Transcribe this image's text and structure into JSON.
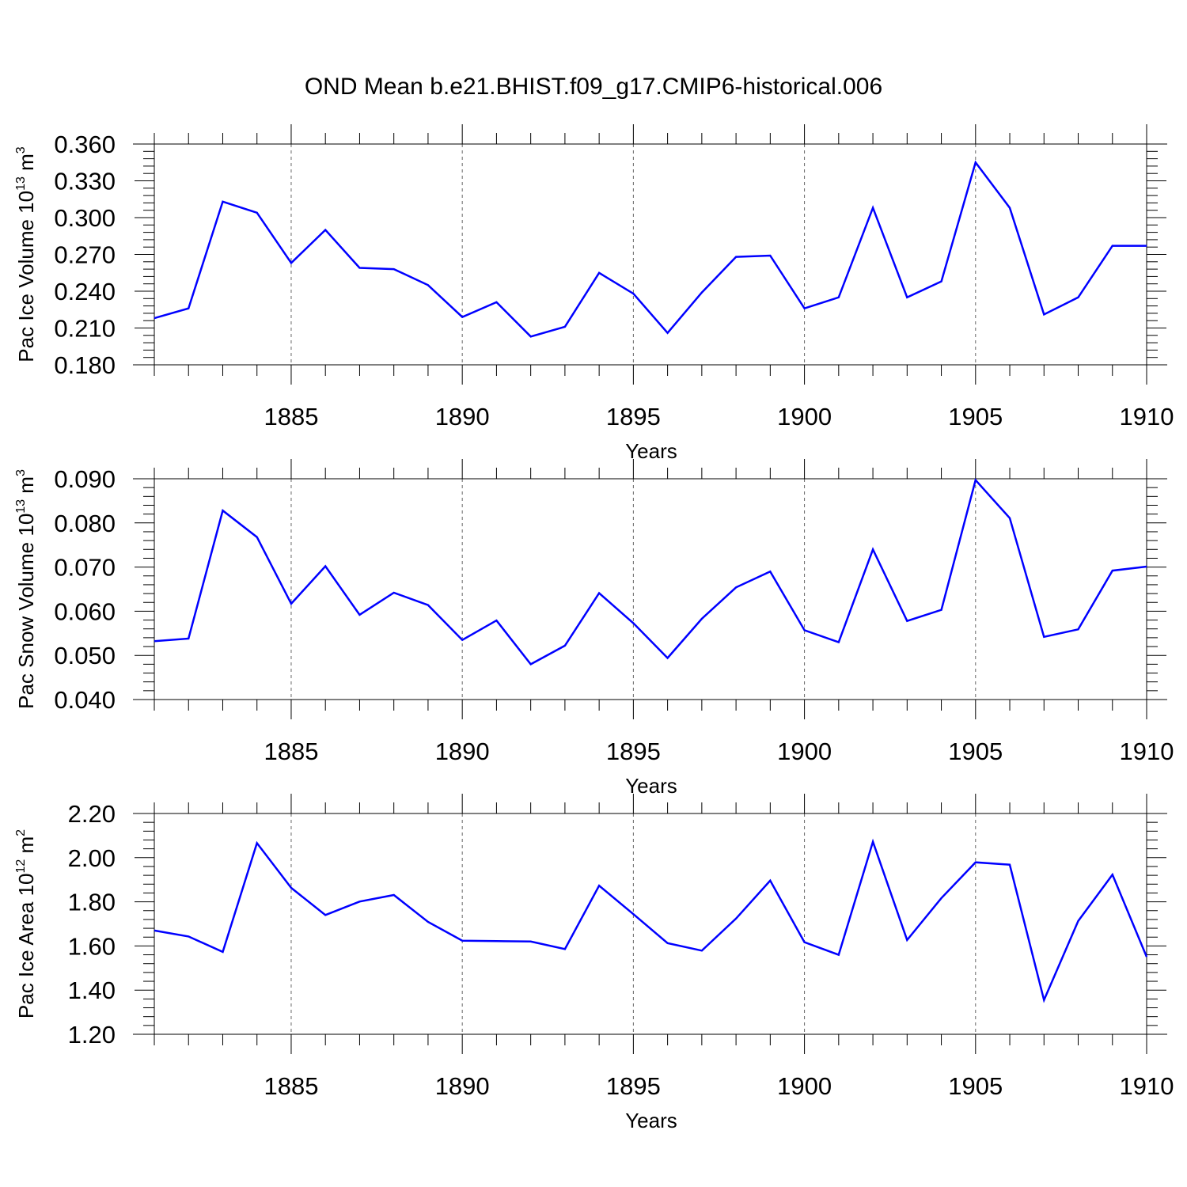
{
  "chart_data": [
    {
      "type": "line",
      "title": "OND Mean b.e21.BHIST.f09_g17.CMIP6-historical.006",
      "xlabel": "Years",
      "ylabel": "Pac Ice Volume 10",
      "ylabel_exp": "13",
      "ylabel_unit": " m",
      "ylabel_unit_exp": "3",
      "xlim": [
        1881,
        1910
      ],
      "ylim": [
        0.18,
        0.36
      ],
      "x_ticks": [
        "1885",
        "1890",
        "1895",
        "1900",
        "1905",
        "1910"
      ],
      "y_ticks": [
        "0.180",
        "0.210",
        "0.240",
        "0.270",
        "0.300",
        "0.330",
        "0.360"
      ],
      "series": [
        {
          "name": "Pac Ice Volume",
          "color": "#0000ff",
          "x": [
            1881,
            1882,
            1883,
            1884,
            1885,
            1886,
            1887,
            1888,
            1889,
            1890,
            1891,
            1892,
            1893,
            1894,
            1895,
            1896,
            1897,
            1898,
            1899,
            1900,
            1901,
            1902,
            1903,
            1904,
            1905,
            1906,
            1907,
            1908,
            1909,
            1910
          ],
          "values": [
            0.218,
            0.226,
            0.313,
            0.304,
            0.263,
            0.29,
            0.259,
            0.258,
            0.245,
            0.219,
            0.231,
            0.203,
            0.211,
            0.255,
            0.238,
            0.206,
            0.239,
            0.268,
            0.269,
            0.226,
            0.235,
            0.308,
            0.235,
            0.248,
            0.345,
            0.308,
            0.221,
            0.235,
            0.277,
            0.277
          ]
        }
      ]
    },
    {
      "type": "line",
      "xlabel": "Years",
      "ylabel": "Pac Snow Volume 10",
      "ylabel_exp": "13",
      "ylabel_unit": " m",
      "ylabel_unit_exp": "3",
      "xlim": [
        1881,
        1910
      ],
      "ylim": [
        0.04,
        0.09
      ],
      "x_ticks": [
        "1885",
        "1890",
        "1895",
        "1900",
        "1905",
        "1910"
      ],
      "y_ticks": [
        "0.040",
        "0.050",
        "0.060",
        "0.070",
        "0.080",
        "0.090"
      ],
      "series": [
        {
          "name": "Pac Snow Volume",
          "color": "#0000ff",
          "x": [
            1881,
            1882,
            1883,
            1884,
            1885,
            1886,
            1887,
            1888,
            1889,
            1890,
            1891,
            1892,
            1893,
            1894,
            1895,
            1896,
            1897,
            1898,
            1899,
            1900,
            1901,
            1902,
            1903,
            1904,
            1905,
            1906,
            1907,
            1908,
            1909,
            1910
          ],
          "values": [
            0.0532,
            0.0538,
            0.0828,
            0.0768,
            0.0617,
            0.0702,
            0.0592,
            0.0642,
            0.0614,
            0.0535,
            0.0579,
            0.048,
            0.0522,
            0.0641,
            0.0573,
            0.0494,
            0.0583,
            0.0654,
            0.069,
            0.0557,
            0.053,
            0.074,
            0.0578,
            0.0603,
            0.0897,
            0.0811,
            0.0542,
            0.0559,
            0.0692,
            0.0701
          ]
        }
      ]
    },
    {
      "type": "line",
      "xlabel": "Years",
      "ylabel": "Pac Ice Area 10",
      "ylabel_exp": "12",
      "ylabel_unit": " m",
      "ylabel_unit_exp": "2",
      "xlim": [
        1881,
        1910
      ],
      "ylim": [
        1.2,
        2.2
      ],
      "x_ticks": [
        "1885",
        "1890",
        "1895",
        "1900",
        "1905",
        "1910"
      ],
      "y_ticks": [
        "1.20",
        "1.40",
        "1.60",
        "1.80",
        "2.00",
        "2.20"
      ],
      "series": [
        {
          "name": "Pac Ice Area",
          "color": "#0000ff",
          "x": [
            1881,
            1882,
            1883,
            1884,
            1885,
            1886,
            1887,
            1888,
            1889,
            1890,
            1891,
            1892,
            1893,
            1894,
            1895,
            1896,
            1897,
            1898,
            1899,
            1900,
            1901,
            1902,
            1903,
            1904,
            1905,
            1906,
            1907,
            1908,
            1909,
            1910
          ],
          "values": [
            1.67,
            1.643,
            1.573,
            2.066,
            1.863,
            1.74,
            1.801,
            1.831,
            1.709,
            1.624,
            1.622,
            1.62,
            1.586,
            1.873,
            1.744,
            1.613,
            1.579,
            1.724,
            1.896,
            1.617,
            1.56,
            2.072,
            1.627,
            1.817,
            1.979,
            1.968,
            1.355,
            1.713,
            1.923,
            1.551
          ]
        }
      ]
    }
  ]
}
